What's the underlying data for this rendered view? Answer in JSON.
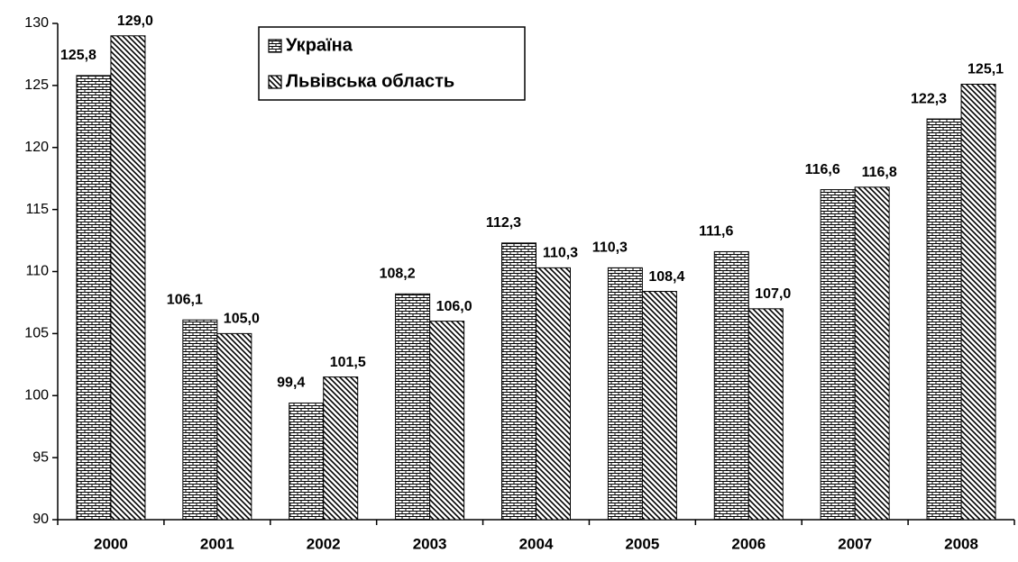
{
  "chart_data": {
    "type": "bar",
    "categories": [
      "2000",
      "2001",
      "2002",
      "2003",
      "2004",
      "2005",
      "2006",
      "2007",
      "2008"
    ],
    "series": [
      {
        "name": "Україна",
        "color": "#000000",
        "pattern": "brick",
        "values": [
          125.8,
          106.1,
          99.4,
          108.2,
          112.3,
          110.3,
          111.6,
          116.6,
          122.3
        ],
        "value_labels": [
          "125,8",
          "106,1",
          "99,4",
          "108,2",
          "112,3",
          "110,3",
          "111,6",
          "116,6",
          "122,3"
        ]
      },
      {
        "name": "Львівська область",
        "color": "#000000",
        "pattern": "hatch",
        "values": [
          129.0,
          105.0,
          101.5,
          106.0,
          110.3,
          108.4,
          107.0,
          116.8,
          125.1
        ],
        "value_labels": [
          "129,0",
          "105,0",
          "101,5",
          "106,0",
          "110,3",
          "108,4",
          "107,0",
          "116,8",
          "125,1"
        ]
      }
    ],
    "ylim": [
      90,
      130
    ],
    "yticks": [
      90,
      95,
      100,
      105,
      110,
      115,
      120,
      125,
      130
    ]
  }
}
